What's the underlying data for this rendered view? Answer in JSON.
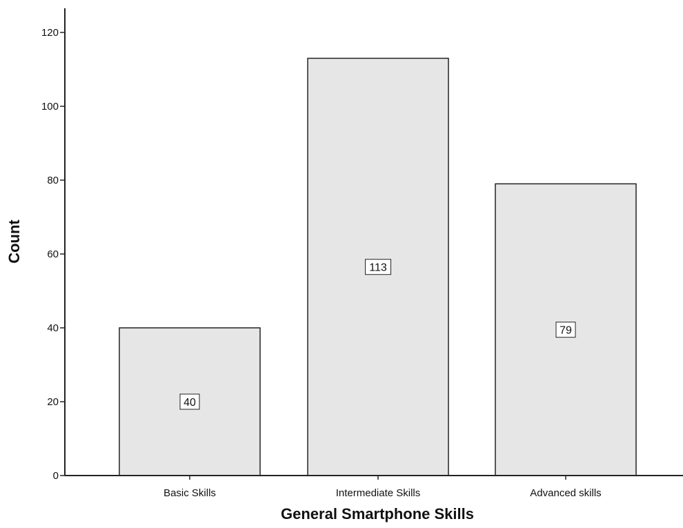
{
  "chart_data": {
    "type": "bar",
    "categories": [
      "Basic Skills",
      "Intermediate Skills",
      "Advanced skills"
    ],
    "values": [
      40,
      113,
      79
    ],
    "data_labels": [
      "40",
      "113",
      "79"
    ],
    "xlabel": "General Smartphone Skills",
    "ylabel": "Count",
    "ylim": [
      0,
      120
    ],
    "yticks": [
      0,
      20,
      40,
      60,
      80,
      100,
      120
    ],
    "grid": false,
    "bar_color": "#e6e6e6",
    "bar_edge_color": "#222222"
  }
}
